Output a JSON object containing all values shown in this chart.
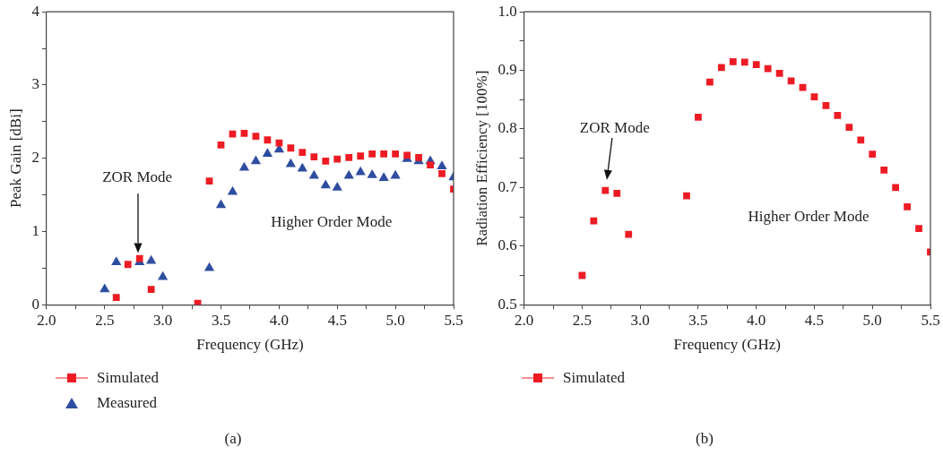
{
  "chart_data": [
    {
      "type": "scatter",
      "xlabel": "Frequency (GHz)",
      "ylabel": "Peak Gain [dBi]",
      "xlim": [
        2.0,
        5.5
      ],
      "xticks": [
        {
          "value": 2.0,
          "label": "2.0"
        },
        {
          "value": 2.25,
          "label": null
        },
        {
          "value": 2.5,
          "label": "2.5"
        },
        {
          "value": 2.75,
          "label": null
        },
        {
          "value": 3.0,
          "label": "3.0"
        },
        {
          "value": 3.25,
          "label": null
        },
        {
          "value": 3.5,
          "label": "3.5"
        },
        {
          "value": 3.75,
          "label": null
        },
        {
          "value": 4.0,
          "label": "4.0"
        },
        {
          "value": 4.25,
          "label": null
        },
        {
          "value": 4.5,
          "label": "4.5"
        },
        {
          "value": 4.75,
          "label": null
        },
        {
          "value": 5.0,
          "label": "5.0"
        },
        {
          "value": 5.25,
          "label": null
        },
        {
          "value": 5.5,
          "label": "5.5"
        }
      ],
      "ylim": [
        0,
        4
      ],
      "yticks": [
        0,
        {
          "value": 0.5,
          "label": null
        },
        1,
        {
          "value": 1.5,
          "label": null
        },
        2,
        {
          "value": 2.5,
          "label": null
        },
        3,
        {
          "value": 3.5,
          "label": null
        },
        4
      ],
      "legend": "bottom",
      "series": [
        {
          "name": "Simulated",
          "color": "#ed1c24",
          "marker": "square",
          "x": [
            2.6,
            2.7,
            2.8,
            2.9,
            3.3,
            3.4,
            3.5,
            3.6,
            3.7,
            3.8,
            3.9,
            4.0,
            4.1,
            4.2,
            4.3,
            4.4,
            4.5,
            4.6,
            4.7,
            4.8,
            4.9,
            5.0,
            5.1,
            5.2,
            5.3,
            5.4,
            5.5
          ],
          "values": [
            0.1,
            0.55,
            0.63,
            0.21,
            0.02,
            1.69,
            2.18,
            2.33,
            2.34,
            2.3,
            2.25,
            2.21,
            2.14,
            2.08,
            2.02,
            1.96,
            1.99,
            2.01,
            2.03,
            2.06,
            2.06,
            2.06,
            2.04,
            2.01,
            1.91,
            1.79,
            1.58
          ]
        },
        {
          "name": "Measured",
          "color": "#2e4da0",
          "marker": "triangle",
          "x": [
            2.5,
            2.6,
            2.8,
            2.9,
            3.0,
            3.4,
            3.5,
            3.6,
            3.7,
            3.8,
            3.9,
            4.0,
            4.1,
            4.2,
            4.3,
            4.4,
            4.5,
            4.6,
            4.7,
            4.8,
            4.9,
            5.0,
            5.1,
            5.2,
            5.3,
            5.4,
            5.5
          ],
          "values": [
            0.21,
            0.58,
            0.58,
            0.6,
            0.38,
            0.5,
            1.36,
            1.54,
            1.87,
            1.96,
            2.06,
            2.12,
            1.92,
            1.86,
            1.76,
            1.63,
            1.6,
            1.76,
            1.81,
            1.77,
            1.73,
            1.76,
            1.99,
            1.96,
            1.96,
            1.89,
            1.74
          ]
        }
      ],
      "annotations": [
        "ZOR Mode",
        "Higher Order Mode",
        "(a)"
      ]
    },
    {
      "type": "scatter",
      "xlabel": "Frequency (GHz)",
      "ylabel": "Radiation Efficiency [100%]",
      "xlim": [
        2.0,
        5.5
      ],
      "xticks": [
        {
          "value": 2.0,
          "label": "2.0"
        },
        {
          "value": 2.25,
          "label": null
        },
        {
          "value": 2.5,
          "label": "2.5"
        },
        {
          "value": 2.75,
          "label": null
        },
        {
          "value": 3.0,
          "label": "3.0"
        },
        {
          "value": 3.25,
          "label": null
        },
        {
          "value": 3.5,
          "label": "3.5"
        },
        {
          "value": 3.75,
          "label": null
        },
        {
          "value": 4.0,
          "label": "4.0"
        },
        {
          "value": 4.25,
          "label": null
        },
        {
          "value": 4.5,
          "label": "4.5"
        },
        {
          "value": 4.75,
          "label": null
        },
        {
          "value": 5.0,
          "label": "5.0"
        },
        {
          "value": 5.25,
          "label": null
        },
        {
          "value": 5.5,
          "label": "5.5"
        }
      ],
      "ylim": [
        0.5,
        1.0
      ],
      "yticks": [
        0.5,
        {
          "value": 0.55,
          "label": null
        },
        0.6,
        {
          "value": 0.65,
          "label": null
        },
        0.7,
        {
          "value": 0.75,
          "label": null
        },
        0.8,
        {
          "value": 0.85,
          "label": null
        },
        0.9,
        {
          "value": 0.95,
          "label": null
        },
        {
          "value": 1.0,
          "label": "1.0"
        }
      ],
      "legend": "bottom",
      "series": [
        {
          "name": "Simulated",
          "color": "#ed1c24",
          "marker": "square",
          "x": [
            2.5,
            2.6,
            2.7,
            2.8,
            2.9,
            3.4,
            3.5,
            3.6,
            3.7,
            3.8,
            3.9,
            4.0,
            4.1,
            4.2,
            4.3,
            4.4,
            4.5,
            4.6,
            4.7,
            4.8,
            4.9,
            5.0,
            5.1,
            5.2,
            5.3,
            5.4,
            5.5
          ],
          "values": [
            0.55,
            0.643,
            0.695,
            0.69,
            0.62,
            0.686,
            0.82,
            0.88,
            0.905,
            0.915,
            0.914,
            0.91,
            0.903,
            0.895,
            0.882,
            0.871,
            0.855,
            0.84,
            0.823,
            0.803,
            0.781,
            0.757,
            0.73,
            0.7,
            0.667,
            0.63,
            0.59
          ]
        }
      ],
      "annotations": [
        "ZOR Mode",
        "Higher Order Mode",
        "(b)"
      ]
    }
  ]
}
